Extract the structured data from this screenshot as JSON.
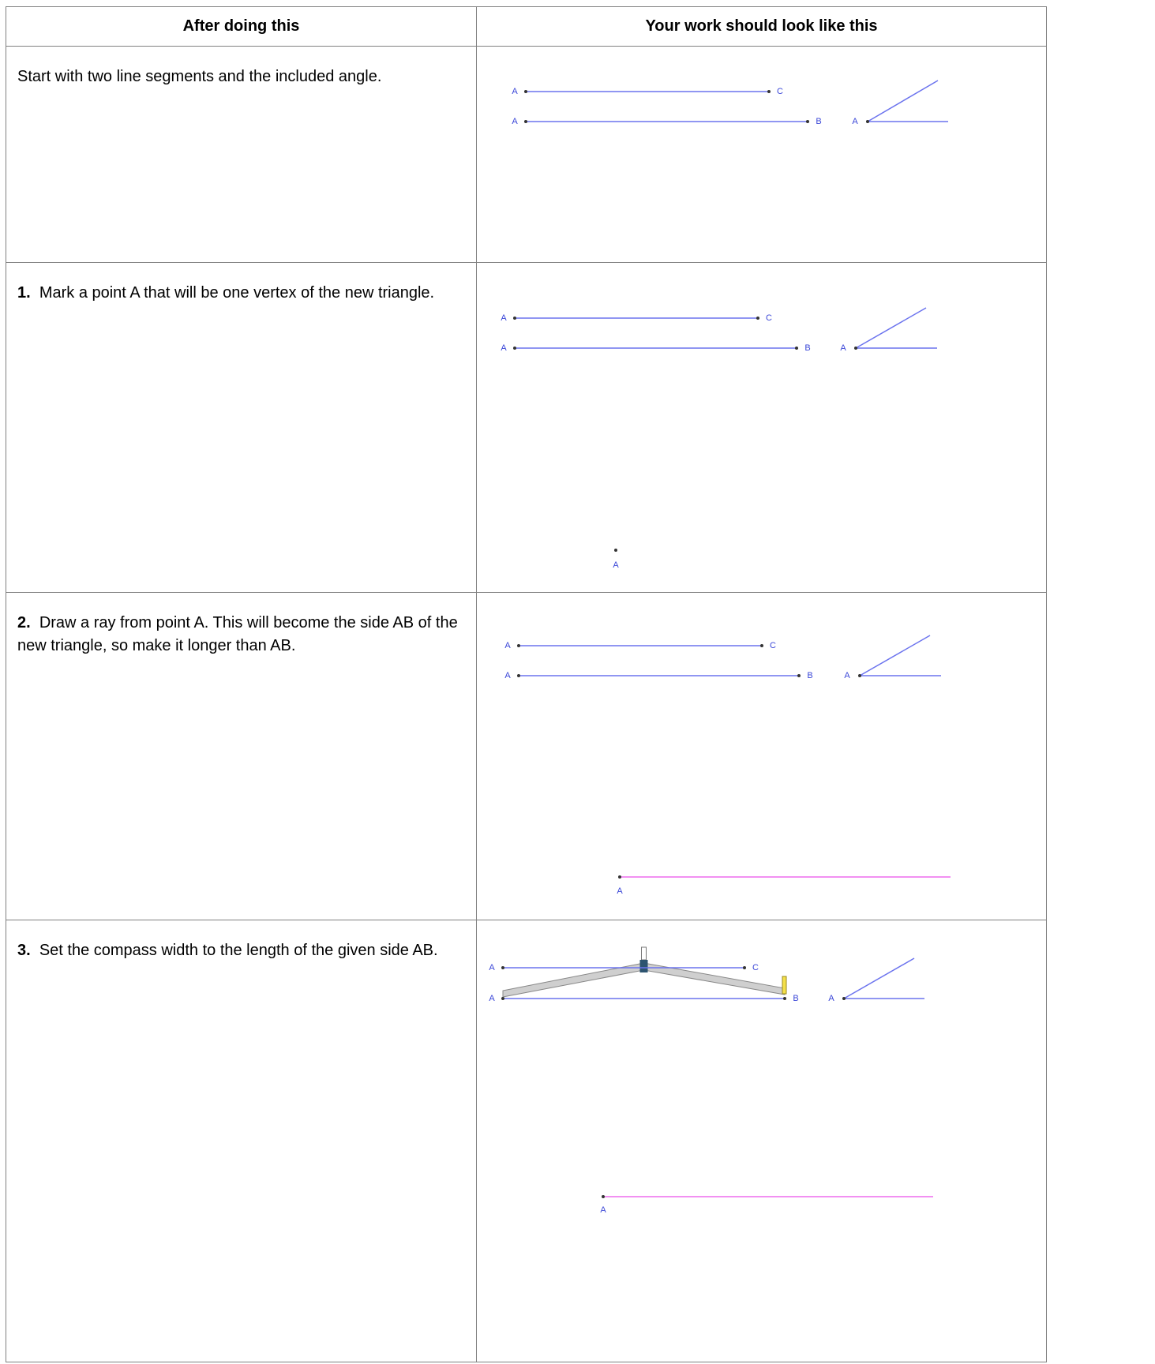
{
  "table": {
    "headers": [
      "After doing this",
      "Your work should look like this"
    ],
    "rows": [
      {
        "text": "Start with two line segments and the included angle.",
        "figure_labels": [
          "A",
          "C",
          "A",
          "B",
          "A"
        ]
      },
      {
        "step": "1.",
        "text": "Mark a point A that will be one vertex of the new triangle.",
        "figure_labels": [
          "A",
          "C",
          "A",
          "B",
          "A",
          "A"
        ]
      },
      {
        "step": "2.",
        "text": "Draw a ray from point A. This will become the side AB of the new triangle, so make it longer than AB.",
        "figure_labels": [
          "A",
          "C",
          "A",
          "B",
          "A",
          "A"
        ]
      },
      {
        "step": "3.",
        "text": "Set the compass width to the length of the given side AB.",
        "figure_labels": [
          "A",
          "C",
          "A",
          "B",
          "A",
          "A"
        ]
      }
    ]
  }
}
